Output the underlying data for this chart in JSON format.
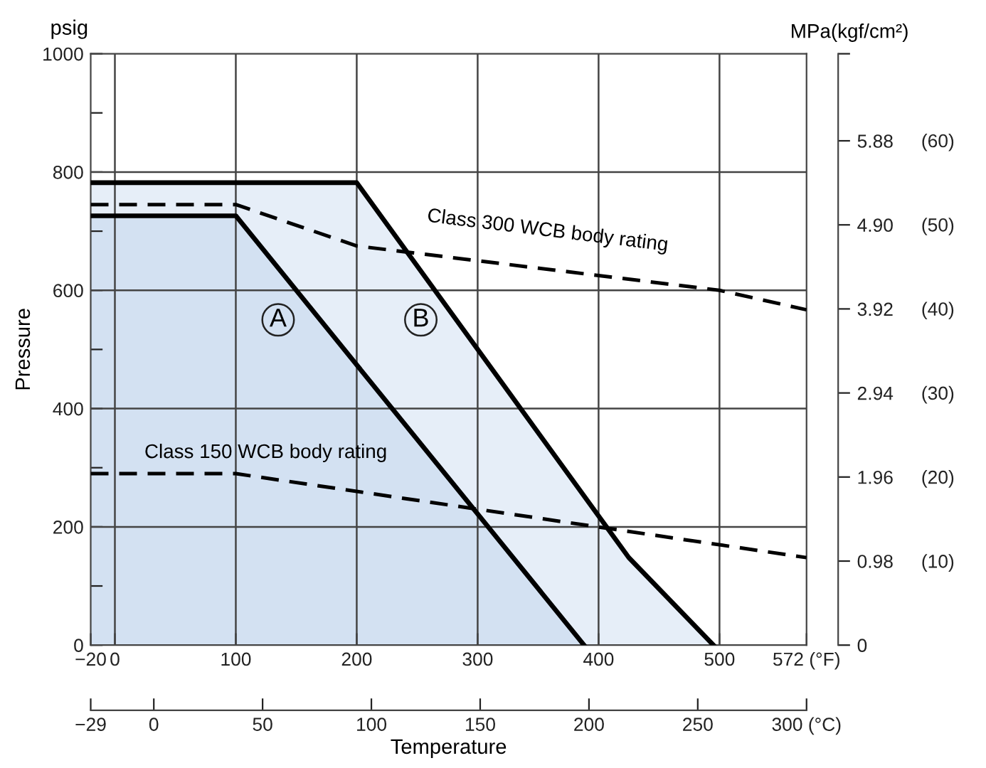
{
  "chart_data": {
    "type": "area",
    "xlabel": "Temperature",
    "ylabel": "Pressure",
    "y2label": "MPa(kgf/cm²)",
    "series": [
      {
        "color": "#e6eef8",
        "x": [
          -20,
          200,
          425,
          495
        ],
        "values": [
          782,
          782,
          148,
          0
        ]
      },
      {
        "color": "#d3e1f2",
        "x": [
          -20,
          100,
          388
        ],
        "values": [
          726,
          726,
          0
        ]
      },
      {
        "type": "line",
        "line_style": "dashed",
        "color": "#000000",
        "x": [
          -20,
          100,
          200,
          500,
          572
        ],
        "values": [
          745,
          745,
          675,
          600,
          567
        ]
      },
      {
        "type": "line",
        "line_style": "dashed",
        "color": "#000000",
        "x": [
          -20,
          100,
          572
        ],
        "values": [
          290,
          290,
          148
        ]
      }
    ],
    "xlim": [
      -20,
      572
    ],
    "xticks": [
      {
        "value": -20,
        "label": "−20"
      },
      0,
      100,
      200,
      300,
      400,
      500,
      {
        "value": 572,
        "label": "572 (°F)"
      }
    ],
    "x2lim": [
      -29,
      300
    ],
    "x2ticks": [
      {
        "value": -29,
        "label": "−29"
      },
      0,
      50,
      100,
      150,
      200,
      250,
      {
        "value": 300,
        "label": "300 (°C)"
      }
    ],
    "ylim": [
      0,
      1000
    ],
    "yticks": [
      0,
      {
        "value": 100,
        "label": null
      },
      200,
      {
        "value": 300,
        "label": null
      },
      400,
      {
        "value": 500,
        "label": null
      },
      600,
      {
        "value": 700,
        "label": null
      },
      800,
      {
        "value": 900,
        "label": null
      },
      1000
    ],
    "y2lim": [
      0,
      6.895
    ],
    "y2ticks": [
      0,
      0.98,
      1.96,
      2.94,
      3.92,
      {
        "value": 4.9,
        "label": "4.90"
      },
      5.88,
      {
        "value": 6.895,
        "label": null
      }
    ],
    "y3lim": [
      0,
      70.31
    ],
    "y3ticks": [
      {
        "value": 10,
        "label": "(10)"
      },
      {
        "value": 20,
        "label": "(20)"
      },
      {
        "value": 30,
        "label": "(30)"
      },
      {
        "value": 40,
        "label": "(40)"
      },
      {
        "value": 50,
        "label": "(50)"
      },
      {
        "value": 60,
        "label": "(60)"
      }
    ],
    "grid": true,
    "annotations": [
      "psig",
      {
        "text": "A",
        "x": 135,
        "y": 550
      },
      {
        "text": "B",
        "x": 253,
        "y": 550
      },
      "Class 300 WCB body rating",
      "Class 150 WCB body rating"
    ]
  }
}
